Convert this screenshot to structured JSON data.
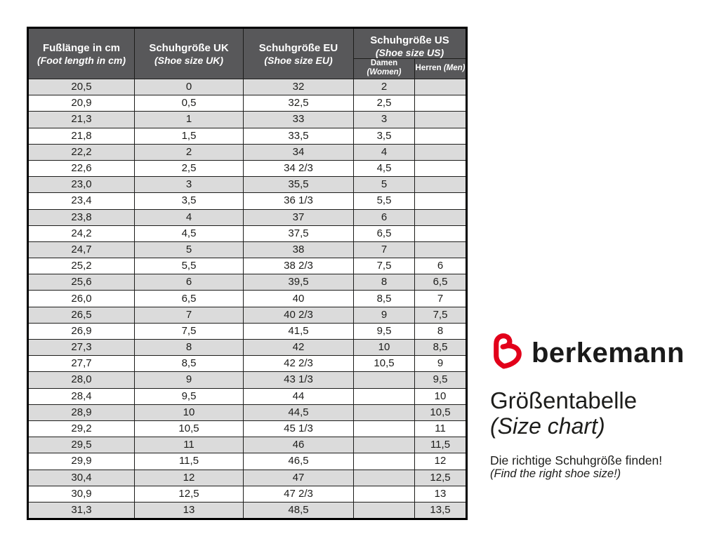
{
  "chart_data": {
    "type": "table",
    "title": "Größentabelle (Size chart)",
    "columns": [
      "Fußlänge in cm (Foot length in cm)",
      "Schuhgröße UK (Shoe size UK)",
      "Schuhgröße EU (Shoe size EU)",
      "Schuhgröße US Damen (Women)",
      "Schuhgröße US Herren (Men)"
    ],
    "rows": [
      [
        "20,5",
        "0",
        "32",
        "2",
        ""
      ],
      [
        "20,9",
        "0,5",
        "32,5",
        "2,5",
        ""
      ],
      [
        "21,3",
        "1",
        "33",
        "3",
        ""
      ],
      [
        "21,8",
        "1,5",
        "33,5",
        "3,5",
        ""
      ],
      [
        "22,2",
        "2",
        "34",
        "4",
        ""
      ],
      [
        "22,6",
        "2,5",
        "34 2/3",
        "4,5",
        ""
      ],
      [
        "23,0",
        "3",
        "35,5",
        "5",
        ""
      ],
      [
        "23,4",
        "3,5",
        "36 1/3",
        "5,5",
        ""
      ],
      [
        "23,8",
        "4",
        "37",
        "6",
        ""
      ],
      [
        "24,2",
        "4,5",
        "37,5",
        "6,5",
        ""
      ],
      [
        "24,7",
        "5",
        "38",
        "7",
        ""
      ],
      [
        "25,2",
        "5,5",
        "38 2/3",
        "7,5",
        "6"
      ],
      [
        "25,6",
        "6",
        "39,5",
        "8",
        "6,5"
      ],
      [
        "26,0",
        "6,5",
        "40",
        "8,5",
        "7"
      ],
      [
        "26,5",
        "7",
        "40 2/3",
        "9",
        "7,5"
      ],
      [
        "26,9",
        "7,5",
        "41,5",
        "9,5",
        "8"
      ],
      [
        "27,3",
        "8",
        "42",
        "10",
        "8,5"
      ],
      [
        "27,7",
        "8,5",
        "42 2/3",
        "10,5",
        "9"
      ],
      [
        "28,0",
        "9",
        "43 1/3",
        "",
        "9,5"
      ],
      [
        "28,4",
        "9,5",
        "44",
        "",
        "10"
      ],
      [
        "28,9",
        "10",
        "44,5",
        "",
        "10,5"
      ],
      [
        "29,2",
        "10,5",
        "45 1/3",
        "",
        "11"
      ],
      [
        "29,5",
        "11",
        "46",
        "",
        "11,5"
      ],
      [
        "29,9",
        "11,5",
        "46,5",
        "",
        "12"
      ],
      [
        "30,4",
        "12",
        "47",
        "",
        "12,5"
      ],
      [
        "30,9",
        "12,5",
        "47 2/3",
        "",
        "13"
      ],
      [
        "31,3",
        "13",
        "48,5",
        "",
        "13,5"
      ]
    ]
  },
  "table_header": {
    "foot": {
      "title": "Fußlänge in cm",
      "subtitle": "(Foot length in cm)"
    },
    "uk": {
      "title": "Schuhgröße UK",
      "subtitle": "(Shoe size UK)"
    },
    "eu": {
      "title": "Schuhgröße EU",
      "subtitle": "(Shoe size EU)"
    },
    "us": {
      "title": "Schuhgröße US",
      "subtitle": "(Shoe size US)"
    },
    "us_sub": {
      "damen": "Damen",
      "damen_en": "(Women)",
      "herren": "Herren",
      "herren_en": "(Men)"
    }
  },
  "branding": {
    "logo_icon": "berkemann-b-heart-icon",
    "brand_name": "berkemann",
    "heading_de": "Größentabelle",
    "heading_en": "(Size chart)",
    "tagline_de": "Die richtige Schuhgröße finden!",
    "tagline_en": "(Find the right shoe size!)"
  },
  "colors": {
    "header_bg": "#58585a",
    "header_text": "#ffffff",
    "row_alt_bg": "#dbdbdb",
    "row_bg": "#ffffff",
    "border": "#1d1d1b",
    "logo_red": "#e2001a",
    "text": "#1d1d1b"
  }
}
